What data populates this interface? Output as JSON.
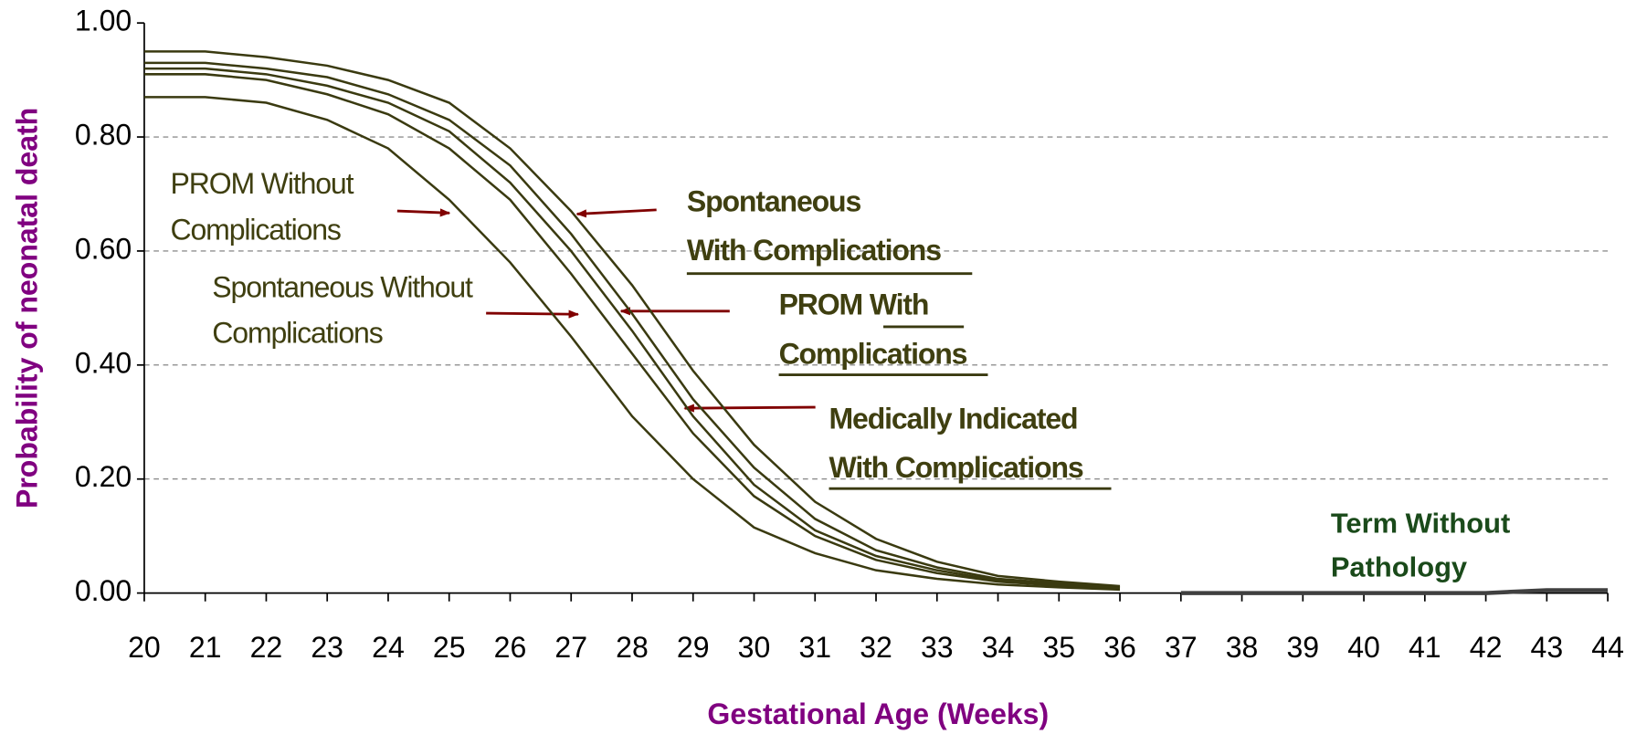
{
  "chart_data": {
    "type": "line",
    "x_label": "Gestational Age (Weeks)",
    "y_label": "Probability of neonatal death",
    "x": [
      20,
      21,
      22,
      23,
      24,
      25,
      26,
      27,
      28,
      29,
      30,
      31,
      32,
      33,
      34,
      35,
      36,
      37,
      38,
      39,
      40,
      41,
      42,
      43,
      44
    ],
    "xlim": [
      20,
      44
    ],
    "xticks": [
      20,
      21,
      22,
      23,
      24,
      25,
      26,
      27,
      28,
      29,
      30,
      31,
      32,
      33,
      34,
      35,
      36,
      37,
      38,
      39,
      40,
      41,
      42,
      43,
      44
    ],
    "ylim": [
      0,
      1
    ],
    "yticks": [
      {
        "value": 0,
        "label": "0.00"
      },
      {
        "value": 0.2,
        "label": "0.20"
      },
      {
        "value": 0.4,
        "label": "0.40"
      },
      {
        "value": 0.6,
        "label": "0.60"
      },
      {
        "value": 0.8,
        "label": "0.80"
      },
      {
        "value": 1,
        "label": "1.00"
      }
    ],
    "grid": true,
    "series": [
      {
        "color": "#3a3a10",
        "values": [
          0.95,
          0.95,
          0.94,
          0.925,
          0.9,
          0.86,
          0.78,
          0.67,
          0.54,
          0.39,
          0.26,
          0.16,
          0.095,
          0.055,
          0.03,
          0.02,
          0.012,
          null,
          null,
          null,
          null,
          null,
          null,
          null,
          null
        ]
      },
      {
        "color": "#3a3a10",
        "values": [
          0.93,
          0.93,
          0.92,
          0.905,
          0.875,
          0.83,
          0.75,
          0.63,
          0.49,
          0.34,
          0.22,
          0.13,
          0.075,
          0.045,
          0.025,
          0.017,
          0.01,
          null,
          null,
          null,
          null,
          null,
          null,
          null,
          null
        ]
      },
      {
        "color": "#3a3a10",
        "values": [
          0.92,
          0.92,
          0.91,
          0.89,
          0.86,
          0.81,
          0.72,
          0.6,
          0.46,
          0.31,
          0.19,
          0.11,
          0.065,
          0.04,
          0.022,
          0.015,
          0.009,
          null,
          null,
          null,
          null,
          null,
          null,
          null,
          null
        ]
      },
      {
        "color": "#3a3a10",
        "values": [
          0.91,
          0.91,
          0.9,
          0.875,
          0.84,
          0.78,
          0.69,
          0.56,
          0.42,
          0.28,
          0.17,
          0.1,
          0.058,
          0.035,
          0.02,
          0.013,
          0.008,
          null,
          null,
          null,
          null,
          null,
          null,
          null,
          null
        ]
      },
      {
        "color": "#3a3a10",
        "values": [
          0.87,
          0.87,
          0.86,
          0.83,
          0.78,
          0.69,
          0.58,
          0.45,
          0.31,
          0.2,
          0.115,
          0.07,
          0.04,
          0.025,
          0.015,
          0.01,
          0.006,
          null,
          null,
          null,
          null,
          null,
          null,
          null,
          null
        ]
      },
      {
        "color": "#404040",
        "values": [
          null,
          null,
          null,
          null,
          null,
          null,
          null,
          null,
          null,
          null,
          null,
          null,
          null,
          null,
          null,
          null,
          null,
          0,
          0,
          0,
          0,
          0,
          0,
          0.005,
          0.005
        ]
      }
    ],
    "annotations": [
      {
        "lines": [
          "PROM Without",
          "Complications"
        ]
      },
      {
        "lines": [
          "Spontaneous Without",
          "Complications"
        ]
      },
      {
        "lines": [
          "Spontaneous",
          "With Complications"
        ]
      },
      {
        "lines": [
          "PROM With",
          "Complications"
        ]
      },
      {
        "lines": [
          "Medically Indicated",
          "With Complications"
        ]
      },
      {
        "lines": [
          "Term Without",
          "Pathology"
        ]
      }
    ]
  }
}
